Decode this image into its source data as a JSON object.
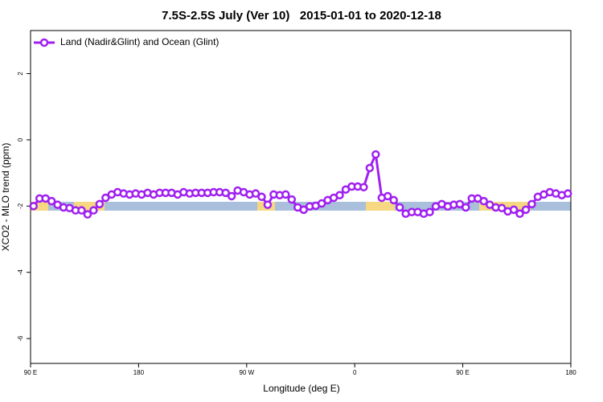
{
  "chart_data": {
    "type": "line",
    "title": "7.5S-2.5S July (Ver 10)   2015-01-01 to 2020-12-18",
    "xlabel": "Longitude (deg E)",
    "ylabel": "XCO2 - MLO trend (ppm)",
    "xlim": [
      90,
      540
    ],
    "xticks": [
      {
        "value": 90,
        "label": "90 E"
      },
      180,
      {
        "value": 270,
        "label": "90 W"
      },
      {
        "value": 360,
        "label": "0"
      },
      {
        "value": 450,
        "label": "90 E"
      },
      {
        "value": 540,
        "label": "180"
      }
    ],
    "ylim": [
      -6.75,
      3.3
    ],
    "yticks": [
      -6,
      -4,
      -2,
      0,
      2
    ],
    "legend": "upper left",
    "series": [
      {
        "name": "Land (Nadir&Glint) and Ocean (Glint)",
        "color": "#a020f0",
        "x": [
          92.5,
          97.5,
          102.5,
          107.5,
          112.5,
          117.5,
          122.5,
          127.5,
          132.5,
          137.5,
          142.5,
          147.5,
          152.5,
          157.5,
          162.5,
          167.5,
          172.5,
          177.5,
          182.5,
          187.5,
          192.5,
          197.5,
          202.5,
          207.5,
          212.5,
          217.5,
          222.5,
          227.5,
          232.5,
          237.5,
          242.5,
          247.5,
          252.5,
          257.5,
          262.5,
          267.5,
          272.5,
          277.5,
          282.5,
          287.5,
          292.5,
          297.5,
          302.5,
          307.5,
          312.5,
          317.5,
          322.5,
          327.5,
          332.5,
          337.5,
          342.5,
          347.5,
          352.5,
          357.5,
          362.5,
          367.5,
          372.5,
          377.5,
          382.5,
          387.5,
          392.5,
          397.5,
          402.5,
          407.5,
          412.5,
          417.5,
          422.5,
          427.5,
          432.5,
          437.5,
          442.5,
          447.5,
          452.5,
          457.5,
          462.5,
          467.5,
          472.5,
          477.5,
          482.5,
          487.5,
          492.5,
          497.5,
          502.5,
          507.5,
          512.5,
          517.5,
          522.5,
          527.5,
          532.5,
          537.5
        ],
        "values": [
          -2.0,
          -1.77,
          -1.77,
          -1.85,
          -1.96,
          -2.04,
          -2.06,
          -2.13,
          -2.13,
          -2.25,
          -2.13,
          -1.94,
          -1.75,
          -1.65,
          -1.58,
          -1.62,
          -1.65,
          -1.62,
          -1.65,
          -1.6,
          -1.65,
          -1.6,
          -1.6,
          -1.6,
          -1.65,
          -1.58,
          -1.62,
          -1.6,
          -1.6,
          -1.6,
          -1.58,
          -1.58,
          -1.6,
          -1.7,
          -1.53,
          -1.58,
          -1.65,
          -1.62,
          -1.72,
          -1.96,
          -1.65,
          -1.67,
          -1.65,
          -1.8,
          -2.04,
          -2.11,
          -2.01,
          -1.99,
          -1.92,
          -1.82,
          -1.75,
          -1.67,
          -1.5,
          -1.41,
          -1.41,
          -1.43,
          -0.85,
          -0.44,
          -1.75,
          -1.7,
          -1.82,
          -2.04,
          -2.23,
          -2.18,
          -2.18,
          -2.23,
          -2.18,
          -2.01,
          -1.94,
          -2.01,
          -1.96,
          -1.94,
          -2.04,
          -1.77,
          -1.77,
          -1.85,
          -1.96,
          -2.04,
          -2.06,
          -2.16,
          -2.11,
          -2.23,
          -2.11,
          -1.94,
          -1.72,
          -1.65,
          -1.58,
          -1.62,
          -1.67,
          -1.62
        ]
      }
    ]
  }
}
